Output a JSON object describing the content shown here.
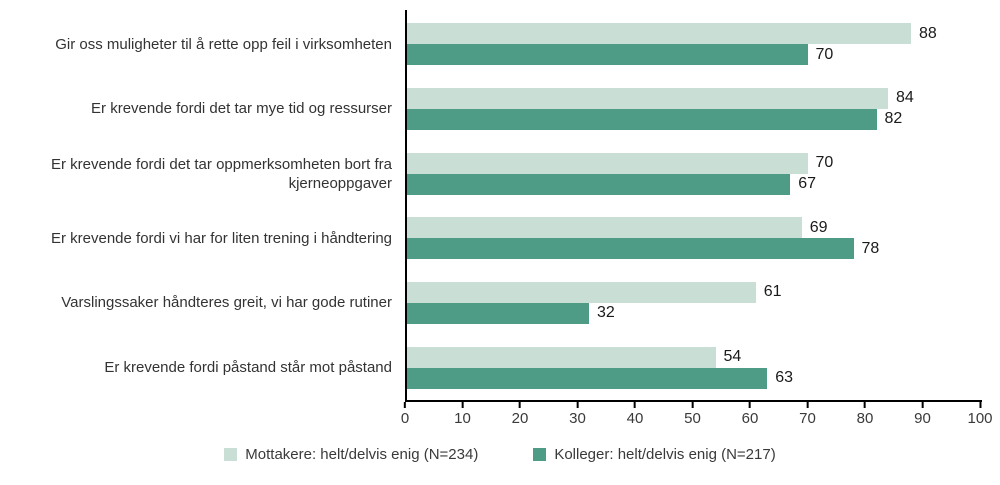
{
  "chart_data": {
    "type": "bar",
    "orientation": "horizontal",
    "title": "",
    "xlabel": "",
    "ylabel": "",
    "xlim": [
      0,
      100
    ],
    "x_ticks": [
      0,
      10,
      20,
      30,
      40,
      50,
      60,
      70,
      80,
      90,
      100
    ],
    "grid": false,
    "legend_position": "bottom",
    "categories": [
      "Gir oss muligheter til å rette opp feil i virksomheten",
      "Er krevende fordi det tar mye tid og ressurser",
      "Er krevende fordi det tar oppmerksomheten bort fra kjerneoppgaver",
      "Er krevende fordi vi har for liten trening i håndtering",
      "Varslingssaker håndteres greit, vi har gode rutiner",
      "Er krevende fordi påstand står mot påstand"
    ],
    "series": [
      {
        "name": "Mottakere: helt/delvis enig (N=234)",
        "key": "mottakere",
        "color": "#c9ded5",
        "values": [
          88,
          84,
          70,
          69,
          61,
          54
        ]
      },
      {
        "name": "Kolleger: helt/delvis enig (N=217)",
        "key": "kolleger",
        "color": "#4f9c86",
        "values": [
          70,
          82,
          67,
          78,
          32,
          63
        ]
      }
    ]
  }
}
